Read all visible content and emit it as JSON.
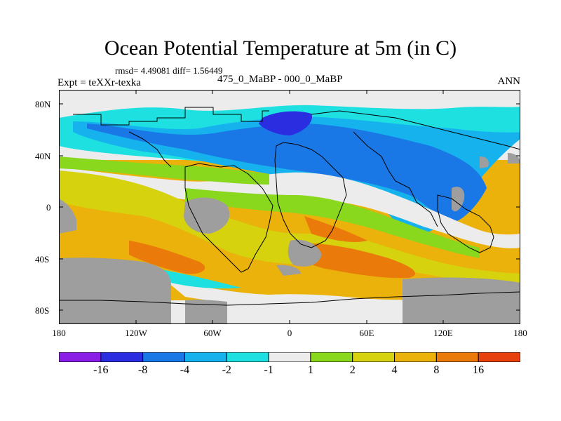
{
  "title": "Ocean Potential Temperature at 5m (in C)",
  "stats_line": "rmsd= 4.49081 diff= 1.56449",
  "expt_label": "Expt = teXXr-texka",
  "case_label": "475_0_MaBP - 000_0_MaBP",
  "season_label": "ANN",
  "y_ticks": [
    "80N",
    "40N",
    "0",
    "40S",
    "80S"
  ],
  "x_ticks": [
    "180",
    "120W",
    "60W",
    "0",
    "60E",
    "120E",
    "180"
  ],
  "colorbar": {
    "colors": [
      "#8a1ee6",
      "#2a2ee0",
      "#1a78e6",
      "#15b2ee",
      "#1ee0e0",
      "#ececec",
      "#8ad81e",
      "#d6d20e",
      "#eab20a",
      "#ea7a0a",
      "#e8400c"
    ],
    "labels": [
      "-16",
      "-8",
      "-4",
      "-2",
      "-1",
      "1",
      "2",
      "4",
      "8",
      "16"
    ]
  },
  "map": {
    "land_color": "#9e9e9e",
    "coast_color": "#000000"
  }
}
